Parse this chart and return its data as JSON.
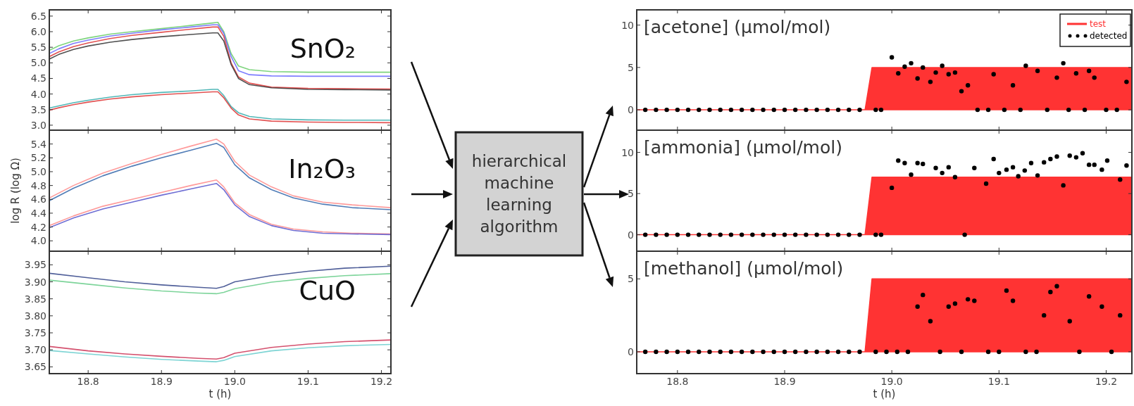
{
  "chart_data": [
    {
      "type": "line",
      "title": "SnO₂",
      "x": [
        18.747,
        18.76,
        18.78,
        18.8,
        18.83,
        18.86,
        18.9,
        18.94,
        18.97,
        18.977,
        18.985,
        18.995,
        19.005,
        19.02,
        19.05,
        19.1,
        19.15,
        19.213
      ],
      "xlim": [
        18.747,
        19.213
      ],
      "ylim": [
        2.84,
        6.7
      ],
      "xticks": [
        18.8,
        18.9,
        19,
        19.1,
        19.2
      ],
      "yticks": [
        {
          "value": 3.0,
          "label": "3.0"
        },
        3.5,
        {
          "value": 4.0,
          "label": "4.0"
        },
        4.5,
        {
          "value": 5.0,
          "label": "5.0"
        },
        5.5,
        {
          "value": 6.0,
          "label": "6.0"
        },
        6.5
      ],
      "tick_labels": "y",
      "marker": "none",
      "line_style": "solid",
      "series": [
        {
          "color": "#66cc66",
          "values": [
            5.4,
            5.55,
            5.7,
            5.8,
            5.92,
            6.0,
            6.1,
            6.2,
            6.28,
            6.3,
            6.0,
            5.3,
            4.9,
            4.78,
            4.72,
            4.7,
            4.7,
            4.7
          ]
        },
        {
          "color": "#6666ff",
          "values": [
            5.3,
            5.45,
            5.62,
            5.73,
            5.86,
            5.95,
            6.06,
            6.15,
            6.22,
            6.22,
            5.95,
            5.2,
            4.75,
            4.62,
            4.58,
            4.57,
            4.57,
            4.57
          ]
        },
        {
          "color": "#dd3333",
          "values": [
            5.2,
            5.35,
            5.52,
            5.64,
            5.78,
            5.88,
            5.98,
            6.08,
            6.15,
            6.15,
            5.85,
            5.0,
            4.55,
            4.35,
            4.22,
            4.18,
            4.17,
            4.16
          ]
        },
        {
          "color": "#333333",
          "values": [
            5.12,
            5.27,
            5.43,
            5.54,
            5.66,
            5.75,
            5.84,
            5.91,
            5.96,
            5.96,
            5.7,
            4.95,
            4.5,
            4.3,
            4.2,
            4.15,
            4.14,
            4.13
          ]
        },
        {
          "color": "#33aaaa",
          "values": [
            3.55,
            3.62,
            3.72,
            3.8,
            3.9,
            3.98,
            4.05,
            4.1,
            4.15,
            4.15,
            3.95,
            3.6,
            3.4,
            3.28,
            3.2,
            3.17,
            3.16,
            3.16
          ]
        },
        {
          "color": "#dd3333",
          "values": [
            3.48,
            3.56,
            3.66,
            3.74,
            3.84,
            3.91,
            3.98,
            4.03,
            4.07,
            4.07,
            3.88,
            3.55,
            3.33,
            3.2,
            3.13,
            3.1,
            3.09,
            3.08
          ]
        }
      ]
    },
    {
      "type": "line",
      "title": "In₂O₃",
      "ylabel": "log R (log Ω)",
      "x": [
        18.747,
        18.78,
        18.82,
        18.86,
        18.9,
        18.94,
        18.975,
        18.985,
        19.0,
        19.02,
        19.05,
        19.08,
        19.12,
        19.16,
        19.213
      ],
      "xlim": [
        18.747,
        19.213
      ],
      "ylim": [
        3.85,
        5.6
      ],
      "xticks": [
        18.8,
        18.9,
        19,
        19.1,
        19.2
      ],
      "yticks": [
        {
          "value": 4.0,
          "label": "4.0"
        },
        4.2,
        4.4,
        4.6,
        4.8,
        {
          "value": 5.0,
          "label": "5.0"
        },
        5.2,
        5.4
      ],
      "tick_labels": "y",
      "marker": "none",
      "line_style": "solid",
      "series": [
        {
          "color": "#ff8888",
          "values": [
            4.62,
            4.8,
            4.98,
            5.12,
            5.25,
            5.37,
            5.47,
            5.4,
            5.15,
            4.95,
            4.78,
            4.65,
            4.56,
            4.52,
            4.48
          ]
        },
        {
          "color": "#3366aa",
          "values": [
            4.58,
            4.76,
            4.94,
            5.08,
            5.2,
            5.31,
            5.41,
            5.35,
            5.1,
            4.91,
            4.74,
            4.62,
            4.53,
            4.48,
            4.45
          ]
        },
        {
          "color": "#ff8888",
          "values": [
            4.22,
            4.36,
            4.5,
            4.6,
            4.7,
            4.8,
            4.88,
            4.78,
            4.55,
            4.38,
            4.24,
            4.17,
            4.13,
            4.11,
            4.1
          ]
        },
        {
          "color": "#5555cc",
          "values": [
            4.19,
            4.33,
            4.46,
            4.56,
            4.66,
            4.75,
            4.83,
            4.74,
            4.52,
            4.35,
            4.22,
            4.15,
            4.11,
            4.1,
            4.09
          ]
        }
      ]
    },
    {
      "type": "line",
      "title": "CuO",
      "xlabel": "t (h)",
      "x": [
        18.747,
        18.8,
        18.85,
        18.9,
        18.95,
        18.975,
        18.985,
        19.0,
        19.05,
        19.1,
        19.15,
        19.213
      ],
      "xlim": [
        18.747,
        19.213
      ],
      "ylim": [
        3.63,
        3.99
      ],
      "xticks": [
        18.8,
        18.9,
        {
          "value": 19.0,
          "label": "19.0"
        },
        19.1,
        19.2
      ],
      "yticks": [
        3.65,
        {
          "value": 3.7,
          "label": "3.70"
        },
        3.75,
        {
          "value": 3.8,
          "label": "3.80"
        },
        3.85,
        {
          "value": 3.9,
          "label": "3.90"
        },
        3.95
      ],
      "marker": "none",
      "line_style": "solid",
      "series": [
        {
          "color": "#334488",
          "values": [
            3.925,
            3.912,
            3.9,
            3.891,
            3.884,
            3.881,
            3.886,
            3.9,
            3.918,
            3.931,
            3.94,
            3.946
          ]
        },
        {
          "color": "#66cc88",
          "values": [
            3.905,
            3.893,
            3.882,
            3.873,
            3.867,
            3.865,
            3.869,
            3.88,
            3.899,
            3.91,
            3.918,
            3.924
          ]
        },
        {
          "color": "#cc3355",
          "values": [
            3.71,
            3.697,
            3.688,
            3.681,
            3.675,
            3.673,
            3.677,
            3.69,
            3.707,
            3.717,
            3.724,
            3.729
          ]
        },
        {
          "color": "#66cccc",
          "values": [
            3.698,
            3.688,
            3.679,
            3.672,
            3.667,
            3.665,
            3.669,
            3.68,
            3.697,
            3.706,
            3.712,
            3.716
          ]
        }
      ]
    },
    {
      "type": "other",
      "annotations": [
        "hierarchical machine learning algorithm"
      ]
    },
    {
      "type": "area",
      "title": "[acetone] (µmol/mol)",
      "xlim": [
        18.762,
        19.224
      ],
      "ylim": [
        -2.4,
        11.8
      ],
      "xticks": [
        18.8,
        18.9,
        19,
        19.1,
        19.2
      ],
      "yticks": [
        0,
        5,
        10
      ],
      "tick_labels": "y",
      "legend": "top right",
      "series": [
        {
          "name": "test",
          "type": "area",
          "color": "#ff3333",
          "x": [
            18.762,
            18.975,
            18.9815,
            19.224
          ],
          "values": [
            0,
            0,
            5,
            5
          ]
        },
        {
          "name": "detected",
          "type": "scatter",
          "marker": "circle",
          "color": "#000000",
          "x": [
            18.77,
            18.78,
            18.79,
            18.8,
            18.81,
            18.82,
            18.83,
            18.84,
            18.85,
            18.86,
            18.87,
            18.88,
            18.89,
            18.9,
            18.91,
            18.92,
            18.93,
            18.94,
            18.95,
            18.96,
            18.97,
            18.985,
            18.99,
            19.0,
            19.006,
            19.012,
            19.018,
            19.024,
            19.029,
            19.036,
            19.041,
            19.047,
            19.053,
            19.059,
            19.065,
            19.071,
            19.08,
            19.09,
            19.095,
            19.105,
            19.113,
            19.12,
            19.125,
            19.136,
            19.145,
            19.154,
            19.16,
            19.165,
            19.172,
            19.18,
            19.184,
            19.189,
            19.2,
            19.21,
            19.219
          ],
          "values": [
            0,
            0,
            0,
            0,
            0,
            0,
            0,
            0,
            0,
            0,
            0,
            0,
            0,
            0,
            0,
            0,
            0,
            0,
            0,
            0,
            0,
            0,
            0,
            6.2,
            4.3,
            5.1,
            5.5,
            3.7,
            5.0,
            3.3,
            4.4,
            5.2,
            4.2,
            4.4,
            2.2,
            2.9,
            0,
            0,
            4.2,
            0,
            2.9,
            0,
            5.2,
            4.6,
            0,
            3.8,
            5.5,
            0,
            4.3,
            0,
            4.6,
            3.8,
            0,
            0,
            3.3
          ]
        }
      ]
    },
    {
      "type": "area",
      "title": "[ammonia] (µmol/mol)",
      "xlim": [
        18.762,
        19.224
      ],
      "ylim": [
        -2.0,
        12.7
      ],
      "xticks": [
        18.8,
        18.9,
        19,
        19.1,
        19.2
      ],
      "yticks": [
        0,
        5,
        10
      ],
      "tick_labels": "y",
      "series": [
        {
          "type": "area",
          "color": "#ff3333",
          "x": [
            18.762,
            18.975,
            18.9815,
            19.224
          ],
          "values": [
            0,
            0,
            7,
            7
          ]
        },
        {
          "type": "scatter",
          "marker": "circle",
          "color": "#000000",
          "x": [
            18.77,
            18.78,
            18.79,
            18.8,
            18.81,
            18.82,
            18.83,
            18.84,
            18.85,
            18.86,
            18.87,
            18.88,
            18.89,
            18.9,
            18.91,
            18.92,
            18.93,
            18.94,
            18.95,
            18.96,
            18.97,
            18.985,
            18.99,
            19.0,
            19.006,
            19.012,
            19.018,
            19.024,
            19.029,
            19.041,
            19.047,
            19.053,
            19.059,
            19.068,
            19.077,
            19.088,
            19.095,
            19.1,
            19.107,
            19.113,
            19.118,
            19.124,
            19.13,
            19.136,
            19.142,
            19.148,
            19.154,
            19.16,
            19.166,
            19.172,
            19.178,
            19.184,
            19.189,
            19.196,
            19.201,
            19.213,
            19.219
          ],
          "values": [
            0,
            0,
            0,
            0,
            0,
            0,
            0,
            0,
            0,
            0,
            0,
            0,
            0,
            0,
            0,
            0,
            0,
            0,
            0,
            0,
            0,
            0,
            0,
            5.7,
            9.0,
            8.7,
            7.3,
            8.7,
            8.6,
            8.1,
            7.5,
            8.2,
            7.0,
            0,
            8.1,
            6.2,
            9.2,
            7.5,
            7.9,
            8.2,
            7.1,
            7.8,
            8.7,
            7.2,
            8.8,
            9.2,
            9.5,
            6.0,
            9.6,
            9.4,
            9.9,
            8.5,
            8.5,
            7.9,
            9.0,
            6.7,
            8.4
          ]
        }
      ]
    },
    {
      "type": "area",
      "title": "[methanol] (µmol/mol)",
      "xlabel": "t (h)",
      "xlim": [
        18.762,
        19.224
      ],
      "ylim": [
        -1.5,
        6.9
      ],
      "xticks": [
        18.8,
        18.9,
        {
          "value": 19.0,
          "label": "19.0"
        },
        19.1,
        19.2
      ],
      "yticks": [
        0,
        5
      ],
      "series": [
        {
          "type": "area",
          "color": "#ff3333",
          "x": [
            18.762,
            18.975,
            18.9815,
            19.224
          ],
          "values": [
            0,
            0,
            5,
            5
          ]
        },
        {
          "type": "scatter",
          "marker": "circle",
          "color": "#000000",
          "x": [
            18.77,
            18.78,
            18.79,
            18.8,
            18.81,
            18.82,
            18.83,
            18.84,
            18.85,
            18.86,
            18.87,
            18.88,
            18.89,
            18.9,
            18.91,
            18.92,
            18.93,
            18.94,
            18.95,
            18.96,
            18.97,
            18.985,
            18.995,
            19.005,
            19.015,
            19.024,
            19.029,
            19.036,
            19.045,
            19.053,
            19.059,
            19.065,
            19.071,
            19.077,
            19.09,
            19.1,
            19.107,
            19.113,
            19.125,
            19.135,
            19.142,
            19.148,
            19.154,
            19.166,
            19.175,
            19.184,
            19.196,
            19.205,
            19.213
          ],
          "values": [
            0,
            0,
            0,
            0,
            0,
            0,
            0,
            0,
            0,
            0,
            0,
            0,
            0,
            0,
            0,
            0,
            0,
            0,
            0,
            0,
            0,
            0,
            0,
            0,
            0,
            3.1,
            3.9,
            2.1,
            0,
            3.1,
            3.3,
            0,
            3.6,
            3.5,
            0,
            0,
            4.2,
            3.5,
            0,
            0,
            2.5,
            4.1,
            4.5,
            2.1,
            0,
            3.8,
            3.1,
            0,
            2.5
          ]
        }
      ]
    }
  ]
}
